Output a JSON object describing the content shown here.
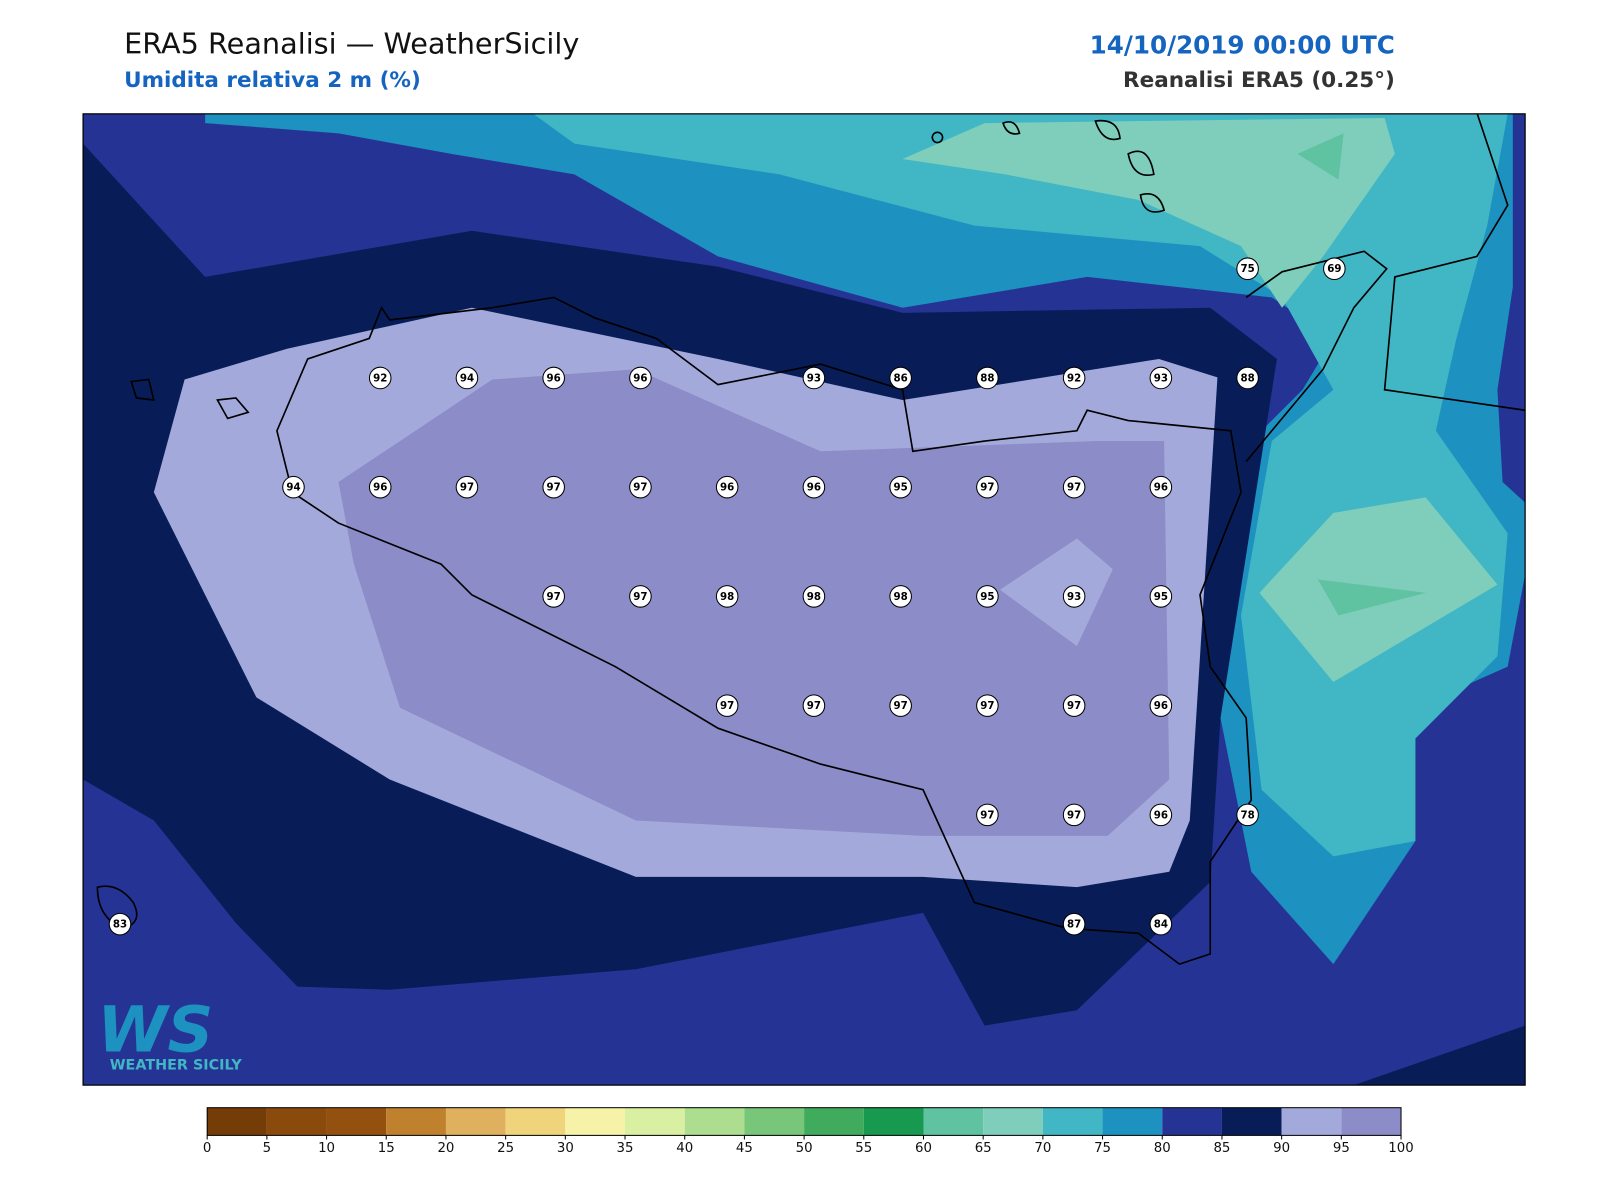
{
  "header": {
    "title": "ERA5 Reanalisi — WeatherSicily",
    "subtitle": "Umidita relativa 2 m (%)",
    "date": "14/10/2019 00:00 UTC",
    "source": "Reanalisi ERA5 (0.25°)"
  },
  "stations": [
    [
      null,
      null,
      null,
      null,
      null,
      null,
      null,
      null,
      null,
      null,
      null,
      null,
      null,
      75,
      69
    ],
    [
      null,
      null,
      null,
      92,
      94,
      96,
      96,
      null,
      93,
      86,
      88,
      92,
      93,
      88,
      null
    ],
    [
      null,
      null,
      94,
      96,
      97,
      97,
      97,
      96,
      96,
      95,
      97,
      97,
      96,
      null,
      null
    ],
    [
      null,
      null,
      null,
      null,
      null,
      97,
      97,
      98,
      98,
      98,
      95,
      93,
      95,
      null,
      null
    ],
    [
      null,
      null,
      null,
      null,
      null,
      null,
      null,
      97,
      97,
      97,
      97,
      97,
      96,
      null,
      null
    ],
    [
      null,
      null,
      null,
      null,
      null,
      null,
      null,
      null,
      null,
      null,
      97,
      97,
      96,
      78,
      null
    ],
    [
      83,
      null,
      null,
      null,
      null,
      null,
      null,
      null,
      null,
      null,
      null,
      87,
      84,
      null,
      null
    ]
  ],
  "colorbar": {
    "ticks": [
      0,
      5,
      10,
      15,
      20,
      25,
      30,
      35,
      40,
      45,
      50,
      55,
      60,
      65,
      70,
      75,
      80,
      85,
      90,
      95,
      100
    ],
    "colors": [
      "#743c06",
      "#8a4a0c",
      "#93500f",
      "#bf812d",
      "#dfb05e",
      "#f0d47c",
      "#f6f3a8",
      "#d9f0a3",
      "#addd8e",
      "#78c679",
      "#41ab5d",
      "#17994f",
      "#5fc2a0",
      "#7fcdbb",
      "#41b6c4",
      "#1d91c0",
      "#253494",
      "#081d58",
      "#a3aadb",
      "#8c8cc8"
    ]
  },
  "logo": {
    "mark": "WS",
    "name": "WEATHER SICILY"
  }
}
